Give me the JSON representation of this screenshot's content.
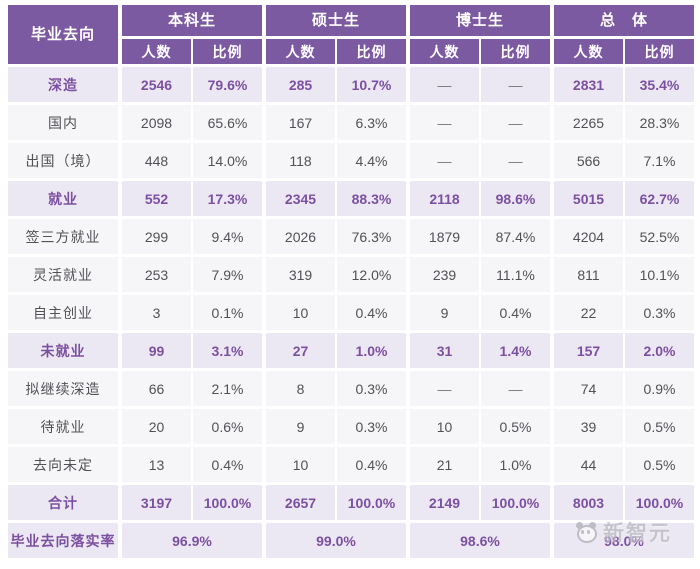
{
  "chart_data": {
    "type": "table",
    "corner_header": "毕业去向",
    "groups": [
      "本科生",
      "硕士生",
      "博士生",
      "总　体"
    ],
    "subheaders": [
      "人数",
      "比例"
    ],
    "rows": [
      {
        "label": "深造",
        "type": "section",
        "values": [
          "2546",
          "79.6%",
          "285",
          "10.7%",
          "—",
          "—",
          "2831",
          "35.4%"
        ]
      },
      {
        "label": "国内",
        "type": "normal",
        "values": [
          "2098",
          "65.6%",
          "167",
          "6.3%",
          "—",
          "—",
          "2265",
          "28.3%"
        ]
      },
      {
        "label": "出国（境）",
        "type": "normal",
        "values": [
          "448",
          "14.0%",
          "118",
          "4.4%",
          "—",
          "—",
          "566",
          "7.1%"
        ]
      },
      {
        "label": "就业",
        "type": "section",
        "values": [
          "552",
          "17.3%",
          "2345",
          "88.3%",
          "2118",
          "98.6%",
          "5015",
          "62.7%"
        ]
      },
      {
        "label": "签三方就业",
        "type": "normal",
        "values": [
          "299",
          "9.4%",
          "2026",
          "76.3%",
          "1879",
          "87.4%",
          "4204",
          "52.5%"
        ]
      },
      {
        "label": "灵活就业",
        "type": "normal",
        "values": [
          "253",
          "7.9%",
          "319",
          "12.0%",
          "239",
          "11.1%",
          "811",
          "10.1%"
        ]
      },
      {
        "label": "自主创业",
        "type": "normal",
        "values": [
          "3",
          "0.1%",
          "10",
          "0.4%",
          "9",
          "0.4%",
          "22",
          "0.3%"
        ]
      },
      {
        "label": "未就业",
        "type": "section",
        "values": [
          "99",
          "3.1%",
          "27",
          "1.0%",
          "31",
          "1.4%",
          "157",
          "2.0%"
        ]
      },
      {
        "label": "拟继续深造",
        "type": "normal",
        "values": [
          "66",
          "2.1%",
          "8",
          "0.3%",
          "—",
          "—",
          "74",
          "0.9%"
        ]
      },
      {
        "label": "待就业",
        "type": "normal",
        "values": [
          "20",
          "0.6%",
          "9",
          "0.3%",
          "10",
          "0.5%",
          "39",
          "0.5%"
        ]
      },
      {
        "label": "去向未定",
        "type": "normal",
        "values": [
          "13",
          "0.4%",
          "10",
          "0.4%",
          "21",
          "1.0%",
          "44",
          "0.5%"
        ]
      },
      {
        "label": "合计",
        "type": "section",
        "values": [
          "3197",
          "100.0%",
          "2657",
          "100.0%",
          "2149",
          "100.0%",
          "8003",
          "100.0%"
        ]
      }
    ],
    "footer": {
      "label": "毕业去向落实率",
      "type": "section",
      "values": [
        "96.9%",
        "99.0%",
        "98.6%",
        "98.0%"
      ]
    }
  },
  "watermark": {
    "text": "新智元"
  },
  "colors": {
    "header_purple": "#7B5AA2",
    "accent_purple": "#7C50A1",
    "section_row_bg": "#ECE8F3",
    "normal_row_bg": "#F6F6F8",
    "text_dark": "#515156",
    "dash_gray": "#77777B"
  }
}
